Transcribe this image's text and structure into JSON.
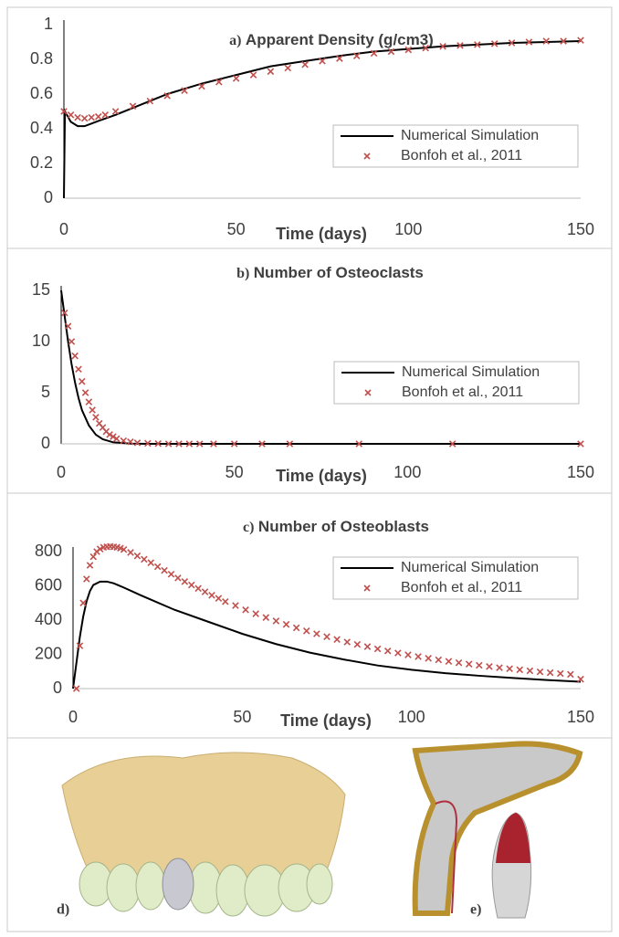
{
  "chart_data": [
    {
      "type": "line",
      "panel_label": "a)",
      "title": "Apparent Density (g/cm3)",
      "xlabel": "Time (days)",
      "xlim": [
        0,
        150
      ],
      "xticks": [
        0,
        50,
        100,
        150
      ],
      "ylim": [
        0,
        1
      ],
      "yticks": [
        0,
        0.2,
        0.4,
        0.6,
        0.8,
        1
      ],
      "grid": false,
      "legend": "right",
      "series": [
        {
          "name": "Numerical Simulation",
          "color": "#000000",
          "marker": "line",
          "x": [
            0,
            0.3,
            2,
            4,
            6,
            8,
            10,
            15,
            20,
            30,
            40,
            50,
            60,
            70,
            80,
            90,
            100,
            110,
            120,
            130,
            140,
            150
          ],
          "values": [
            0,
            0.5,
            0.44,
            0.415,
            0.415,
            0.43,
            0.445,
            0.48,
            0.52,
            0.6,
            0.66,
            0.71,
            0.76,
            0.79,
            0.82,
            0.845,
            0.86,
            0.875,
            0.885,
            0.895,
            0.9,
            0.905
          ]
        },
        {
          "name": "Bonfoh et al., 2011",
          "color": "#c0504d",
          "marker": "x",
          "x": [
            0,
            2,
            4,
            6,
            8,
            10,
            12,
            15,
            20,
            25,
            30,
            35,
            40,
            45,
            50,
            55,
            60,
            65,
            70,
            75,
            80,
            85,
            90,
            95,
            100,
            105,
            110,
            115,
            120,
            125,
            130,
            135,
            140,
            145,
            150
          ],
          "values": [
            0.5,
            0.48,
            0.465,
            0.46,
            0.465,
            0.47,
            0.48,
            0.5,
            0.53,
            0.56,
            0.59,
            0.62,
            0.645,
            0.67,
            0.69,
            0.71,
            0.73,
            0.75,
            0.77,
            0.79,
            0.805,
            0.82,
            0.835,
            0.845,
            0.855,
            0.865,
            0.875,
            0.88,
            0.885,
            0.89,
            0.895,
            0.9,
            0.905,
            0.905,
            0.91
          ]
        }
      ]
    },
    {
      "type": "line",
      "panel_label": "b)",
      "title": "Number of Osteoclasts",
      "xlabel": "Time (days)",
      "xlim": [
        0,
        150
      ],
      "xticks": [
        0,
        50,
        100,
        150
      ],
      "ylim": [
        0,
        15
      ],
      "yticks": [
        0,
        5,
        10,
        15
      ],
      "grid": false,
      "legend": "right",
      "series": [
        {
          "name": "Numerical Simulation",
          "color": "#000000",
          "marker": "line",
          "x": [
            0,
            1,
            2,
            3,
            4,
            5,
            6,
            8,
            10,
            12,
            15,
            20,
            25,
            150
          ],
          "values": [
            15,
            12.5,
            10,
            7.8,
            6,
            4.5,
            3.3,
            1.8,
            0.9,
            0.45,
            0.15,
            0.02,
            0,
            0
          ]
        },
        {
          "name": "Bonfoh et al., 2011",
          "color": "#c0504d",
          "marker": "x",
          "x": [
            1,
            2,
            3,
            4,
            5,
            6,
            7,
            8,
            9,
            10,
            11,
            12,
            13,
            14,
            15,
            16,
            18,
            20,
            22,
            25,
            28,
            31,
            34,
            37,
            40,
            44,
            50,
            58,
            66,
            86,
            113,
            150
          ],
          "values": [
            12.8,
            11.5,
            10,
            8.6,
            7.3,
            6.1,
            5,
            4.1,
            3.3,
            2.6,
            2,
            1.6,
            1.2,
            0.9,
            0.7,
            0.5,
            0.3,
            0.2,
            0.1,
            0.05,
            0.02,
            0,
            0,
            0,
            0,
            0,
            0,
            0,
            0,
            0,
            0,
            0
          ]
        }
      ]
    },
    {
      "type": "line",
      "panel_label": "c)",
      "title": "Number of Osteoblasts",
      "xlabel": "Time (days)",
      "xlim": [
        0,
        150
      ],
      "xticks": [
        0,
        50,
        100,
        150
      ],
      "ylim": [
        0,
        800
      ],
      "yticks": [
        0,
        200,
        400,
        600,
        800
      ],
      "grid": false,
      "legend": "right",
      "series": [
        {
          "name": "Numerical Simulation",
          "color": "#000000",
          "marker": "line",
          "x": [
            0,
            1,
            2,
            3,
            4,
            5,
            6,
            8,
            10,
            12,
            15,
            20,
            30,
            40,
            50,
            60,
            70,
            80,
            90,
            100,
            110,
            120,
            130,
            140,
            150
          ],
          "values": [
            0,
            150,
            300,
            420,
            510,
            570,
            605,
            625,
            625,
            615,
            590,
            545,
            460,
            390,
            320,
            260,
            210,
            170,
            135,
            110,
            90,
            75,
            62,
            50,
            40
          ]
        },
        {
          "name": "Bonfoh et al., 2011",
          "color": "#c0504d",
          "marker": "x",
          "x": [
            1,
            2,
            3,
            4,
            5,
            6,
            7,
            8,
            9,
            10,
            11,
            12,
            13,
            14,
            15,
            17,
            19,
            21,
            23,
            25,
            27,
            29,
            31,
            33,
            35,
            37,
            39,
            41,
            43,
            45,
            48,
            51,
            54,
            57,
            60,
            63,
            66,
            69,
            72,
            75,
            78,
            81,
            84,
            87,
            90,
            93,
            96,
            99,
            102,
            105,
            108,
            111,
            114,
            117,
            120,
            123,
            126,
            129,
            132,
            135,
            138,
            141,
            144,
            147,
            150
          ],
          "values": [
            0,
            250,
            500,
            640,
            720,
            770,
            800,
            815,
            825,
            828,
            830,
            828,
            825,
            820,
            812,
            795,
            775,
            755,
            735,
            712,
            690,
            668,
            646,
            625,
            605,
            585,
            565,
            545,
            527,
            508,
            485,
            460,
            437,
            415,
            395,
            375,
            355,
            337,
            320,
            303,
            287,
            272,
            258,
            245,
            232,
            220,
            208,
            197,
            187,
            177,
            168,
            159,
            151,
            143,
            136,
            129,
            122,
            116,
            110,
            104,
            98,
            93,
            88,
            83,
            55
          ]
        }
      ]
    }
  ],
  "panels": {
    "d": "d)",
    "e": "e)"
  }
}
